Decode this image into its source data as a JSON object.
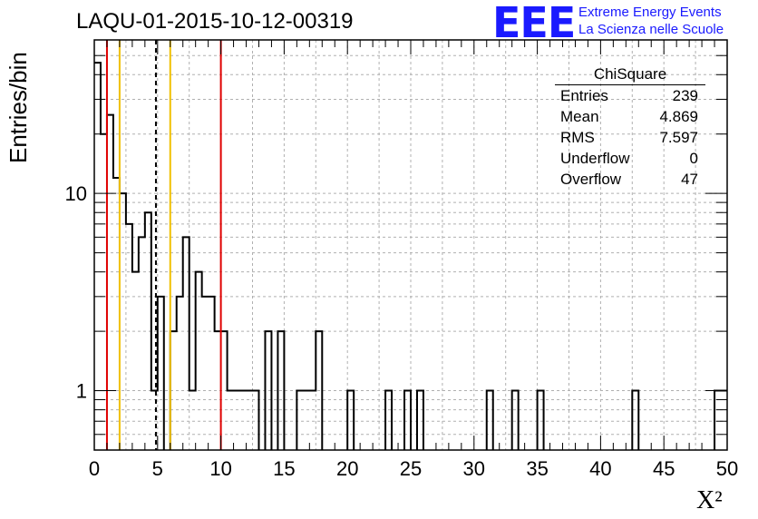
{
  "header": {
    "title": "LAQU-01-2015-10-12-00319",
    "logo_mark": "EEE",
    "logo_line1": "Extreme Energy Events",
    "logo_line2": "La Scienza nelle Scuole"
  },
  "stats_box": {
    "name": "ChiSquare",
    "rows": [
      {
        "label": "Entries",
        "value": "239"
      },
      {
        "label": "Mean",
        "value": "4.869"
      },
      {
        "label": "RMS",
        "value": "7.597"
      },
      {
        "label": "Underflow",
        "value": "0"
      },
      {
        "label": "Overflow",
        "value": "47"
      }
    ]
  },
  "chart_data": {
    "type": "bar",
    "title": "LAQU-01-2015-10-12-00319",
    "xlabel": "X²",
    "ylabel": "Entries/bin",
    "xlim": [
      0,
      50
    ],
    "ylim": [
      0.5,
      60
    ],
    "yscale": "log",
    "grid": true,
    "bin_width": 0.5,
    "x_ticks": [
      0,
      5,
      10,
      15,
      20,
      25,
      30,
      35,
      40,
      45,
      50
    ],
    "y_ticks": [
      1,
      10
    ],
    "bins": [
      {
        "x0": 0.0,
        "count": 46
      },
      {
        "x0": 0.5,
        "count": 20
      },
      {
        "x0": 1.0,
        "count": 25
      },
      {
        "x0": 1.5,
        "count": 12
      },
      {
        "x0": 2.0,
        "count": 10
      },
      {
        "x0": 2.5,
        "count": 7
      },
      {
        "x0": 3.0,
        "count": 4
      },
      {
        "x0": 3.5,
        "count": 6
      },
      {
        "x0": 4.0,
        "count": 8
      },
      {
        "x0": 4.5,
        "count": 1
      },
      {
        "x0": 5.0,
        "count": 3
      },
      {
        "x0": 5.5,
        "count": 0
      },
      {
        "x0": 6.0,
        "count": 2
      },
      {
        "x0": 6.5,
        "count": 3
      },
      {
        "x0": 7.0,
        "count": 6
      },
      {
        "x0": 7.5,
        "count": 1
      },
      {
        "x0": 8.0,
        "count": 4
      },
      {
        "x0": 8.5,
        "count": 3
      },
      {
        "x0": 9.0,
        "count": 3
      },
      {
        "x0": 9.5,
        "count": 2
      },
      {
        "x0": 10.0,
        "count": 2
      },
      {
        "x0": 10.5,
        "count": 1
      },
      {
        "x0": 11.0,
        "count": 1
      },
      {
        "x0": 11.5,
        "count": 1
      },
      {
        "x0": 12.0,
        "count": 1
      },
      {
        "x0": 12.5,
        "count": 1
      },
      {
        "x0": 13.0,
        "count": 0
      },
      {
        "x0": 13.5,
        "count": 2
      },
      {
        "x0": 14.0,
        "count": 0
      },
      {
        "x0": 14.5,
        "count": 2
      },
      {
        "x0": 15.0,
        "count": 0
      },
      {
        "x0": 15.5,
        "count": 0
      },
      {
        "x0": 16.0,
        "count": 1
      },
      {
        "x0": 16.5,
        "count": 1
      },
      {
        "x0": 17.0,
        "count": 1
      },
      {
        "x0": 17.5,
        "count": 2
      },
      {
        "x0": 18.0,
        "count": 0
      },
      {
        "x0": 18.5,
        "count": 0
      },
      {
        "x0": 19.0,
        "count": 0
      },
      {
        "x0": 19.5,
        "count": 0
      },
      {
        "x0": 20.0,
        "count": 1
      },
      {
        "x0": 20.5,
        "count": 0
      },
      {
        "x0": 21.0,
        "count": 0
      },
      {
        "x0": 21.5,
        "count": 0
      },
      {
        "x0": 22.0,
        "count": 0
      },
      {
        "x0": 22.5,
        "count": 0
      },
      {
        "x0": 23.0,
        "count": 1
      },
      {
        "x0": 23.5,
        "count": 0
      },
      {
        "x0": 24.0,
        "count": 0
      },
      {
        "x0": 24.5,
        "count": 1
      },
      {
        "x0": 25.0,
        "count": 0
      },
      {
        "x0": 25.5,
        "count": 1
      },
      {
        "x0": 26.0,
        "count": 0
      },
      {
        "x0": 26.5,
        "count": 0
      },
      {
        "x0": 27.0,
        "count": 0
      },
      {
        "x0": 27.5,
        "count": 0
      },
      {
        "x0": 28.0,
        "count": 0
      },
      {
        "x0": 28.5,
        "count": 0
      },
      {
        "x0": 29.0,
        "count": 0
      },
      {
        "x0": 29.5,
        "count": 0
      },
      {
        "x0": 30.0,
        "count": 0
      },
      {
        "x0": 30.5,
        "count": 0
      },
      {
        "x0": 31.0,
        "count": 1
      },
      {
        "x0": 31.5,
        "count": 0
      },
      {
        "x0": 32.0,
        "count": 0
      },
      {
        "x0": 32.5,
        "count": 0
      },
      {
        "x0": 33.0,
        "count": 1
      },
      {
        "x0": 33.5,
        "count": 0
      },
      {
        "x0": 34.0,
        "count": 0
      },
      {
        "x0": 34.5,
        "count": 0
      },
      {
        "x0": 35.0,
        "count": 1
      },
      {
        "x0": 35.5,
        "count": 0
      },
      {
        "x0": 36.0,
        "count": 0
      },
      {
        "x0": 36.5,
        "count": 0
      },
      {
        "x0": 37.0,
        "count": 0
      },
      {
        "x0": 37.5,
        "count": 0
      },
      {
        "x0": 38.0,
        "count": 0
      },
      {
        "x0": 38.5,
        "count": 0
      },
      {
        "x0": 39.0,
        "count": 0
      },
      {
        "x0": 39.5,
        "count": 0
      },
      {
        "x0": 40.0,
        "count": 0
      },
      {
        "x0": 40.5,
        "count": 0
      },
      {
        "x0": 41.0,
        "count": 0
      },
      {
        "x0": 41.5,
        "count": 0
      },
      {
        "x0": 42.0,
        "count": 0
      },
      {
        "x0": 42.5,
        "count": 1
      },
      {
        "x0": 43.0,
        "count": 0
      },
      {
        "x0": 43.5,
        "count": 0
      },
      {
        "x0": 44.0,
        "count": 0
      },
      {
        "x0": 44.5,
        "count": 0
      },
      {
        "x0": 45.0,
        "count": 0
      },
      {
        "x0": 45.5,
        "count": 0
      },
      {
        "x0": 46.0,
        "count": 0
      },
      {
        "x0": 46.5,
        "count": 0
      },
      {
        "x0": 47.0,
        "count": 0
      },
      {
        "x0": 47.5,
        "count": 0
      },
      {
        "x0": 48.0,
        "count": 0
      },
      {
        "x0": 48.5,
        "count": 0
      },
      {
        "x0": 49.0,
        "count": 1
      },
      {
        "x0": 49.5,
        "count": 1
      }
    ],
    "vertical_lines": [
      {
        "x": 1,
        "color": "#e00000",
        "style": "solid"
      },
      {
        "x": 2,
        "color": "#f0c000",
        "style": "solid"
      },
      {
        "x": 4.869,
        "color": "#000000",
        "style": "dashed"
      },
      {
        "x": 6,
        "color": "#f0c000",
        "style": "solid"
      },
      {
        "x": 10,
        "color": "#e00000",
        "style": "solid"
      }
    ]
  }
}
